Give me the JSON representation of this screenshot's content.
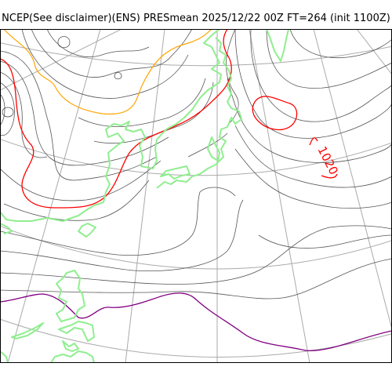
{
  "title": "NCEP(See disclaimer)(ENS) PRESmean 2025/12/22 00Z FT=264 (init 1100Z)",
  "contour_labels": [
    {
      "text": "1020"
    }
  ],
  "colors": {
    "isobar": "#555555",
    "graticule": "#aaaaaa",
    "coastline": "#90ee90",
    "contour_1020": "#ff0000",
    "contour_orange": "#ffa500",
    "contour_purple": "#800080"
  }
}
